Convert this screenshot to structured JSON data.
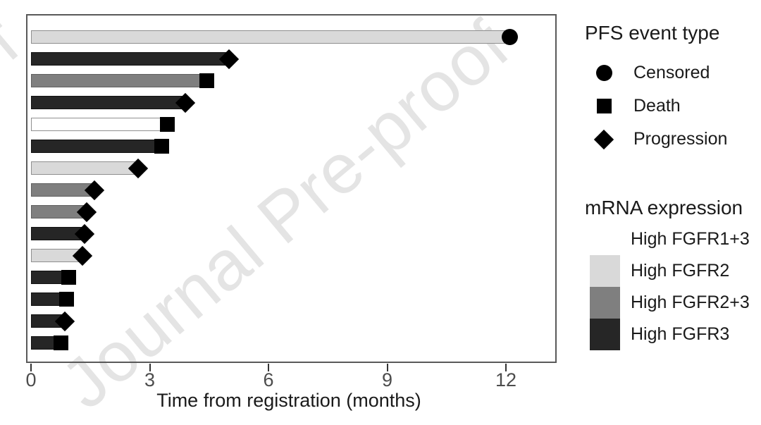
{
  "watermark": "Journal Pre-proof",
  "colors": {
    "marker": "#000000",
    "panel_border": "#595959",
    "tick_mark": "#333333",
    "tick_text": "#4d4d4d",
    "axis_title_text": "#1a1a1a",
    "legend_text": "#1a1a1a",
    "watermark": "#e4e4e4",
    "groups": {
      "High FGFR1+3": {
        "fill": "#ffffff",
        "border": "#8f8f8f"
      },
      "High FGFR2": {
        "fill": "#d9d9d9",
        "border": "#8f8f8f"
      },
      "High FGFR2+3": {
        "fill": "#7f7f7f",
        "border": "#606060"
      },
      "High FGFR3": {
        "fill": "#262626",
        "border": "#111111"
      }
    }
  },
  "legends": {
    "event": {
      "title": "PFS event type",
      "items": [
        {
          "shape": "circle",
          "label": "Censored"
        },
        {
          "shape": "square",
          "label": "Death"
        },
        {
          "shape": "diamond",
          "label": "Progression"
        }
      ]
    },
    "expression": {
      "title": "mRNA expression",
      "items": [
        {
          "label": "High FGFR1+3"
        },
        {
          "label": "High FGFR2"
        },
        {
          "label": "High FGFR2+3"
        },
        {
          "label": "High FGFR3"
        }
      ]
    }
  },
  "chart_data": {
    "type": "bar",
    "orientation": "horizontal",
    "title": "",
    "xlabel": "Time from registration (months)",
    "ylabel": "",
    "xticks": [
      0,
      3,
      6,
      9,
      12
    ],
    "xlim": [
      0,
      13.3
    ],
    "grid": false,
    "legend_position": "right",
    "bars": [
      {
        "months": 12.1,
        "event": "Censored",
        "group": "High FGFR2"
      },
      {
        "months": 5.0,
        "event": "Progression",
        "group": "High FGFR3"
      },
      {
        "months": 4.45,
        "event": "Death",
        "group": "High FGFR2+3"
      },
      {
        "months": 3.9,
        "event": "Progression",
        "group": "High FGFR3"
      },
      {
        "months": 3.45,
        "event": "Death",
        "group": "High FGFR1+3"
      },
      {
        "months": 3.3,
        "event": "Death",
        "group": "High FGFR3"
      },
      {
        "months": 2.7,
        "event": "Progression",
        "group": "High FGFR2"
      },
      {
        "months": 1.6,
        "event": "Progression",
        "group": "High FGFR2+3"
      },
      {
        "months": 1.4,
        "event": "Progression",
        "group": "High FGFR2+3"
      },
      {
        "months": 1.35,
        "event": "Progression",
        "group": "High FGFR3"
      },
      {
        "months": 1.3,
        "event": "Progression",
        "group": "High FGFR2"
      },
      {
        "months": 0.95,
        "event": "Death",
        "group": "High FGFR3"
      },
      {
        "months": 0.9,
        "event": "Death",
        "group": "High FGFR3"
      },
      {
        "months": 0.85,
        "event": "Progression",
        "group": "High FGFR3"
      },
      {
        "months": 0.75,
        "event": "Death",
        "group": "High FGFR3"
      }
    ]
  }
}
